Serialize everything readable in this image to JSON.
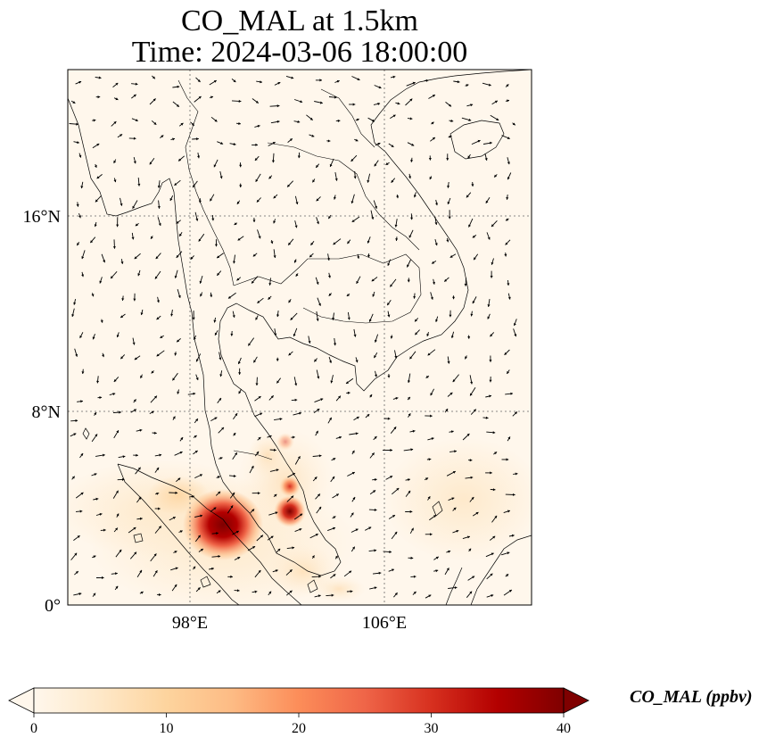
{
  "title": {
    "line1": "CO_MAL at 1.5km",
    "line2": "Time: 2024-03-06 18:00:00"
  },
  "map": {
    "lon_range_deg": [
      93,
      112
    ],
    "lat_range_deg": [
      0,
      22
    ],
    "gridlines": "dotted",
    "longitude_ticks": [
      "98°E",
      "106°E"
    ],
    "latitude_ticks": [
      "16°N",
      "8°N",
      "0°"
    ]
  },
  "colorbar": {
    "label": "CO_MAL (ppbv)",
    "colormap": "OrRd",
    "extend": "both",
    "range": [
      0,
      40
    ],
    "ticks": [
      "0",
      "10",
      "20",
      "30",
      "40"
    ],
    "colors": [
      "#fff7ec",
      "#fee8c8",
      "#fdd49e",
      "#fdbb84",
      "#fc8d59",
      "#ef6548",
      "#d7301f",
      "#b30000",
      "#7f0000"
    ]
  }
}
